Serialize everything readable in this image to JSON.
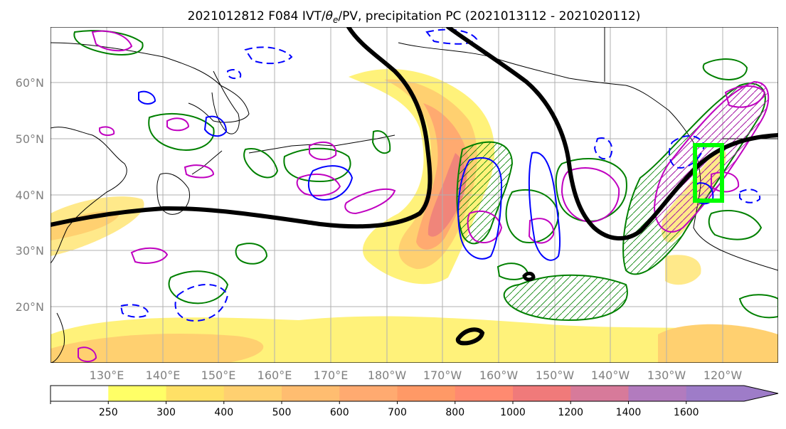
{
  "figure": {
    "title_prefix": "2021012812 F084 IVT/",
    "title_theta": "θ",
    "title_theta_sub": "e",
    "title_suffix": "/PV, precipitation PC (2021013112 - 2021020112)"
  },
  "chart_data": {
    "type": "map",
    "title": "2021012812 F084 IVT/θe/PV, precipitation PC (2021013112 - 2021020112)",
    "projection": "equirectangular",
    "lon_range_east": [
      120,
      247
    ],
    "lat_range": [
      10,
      70
    ],
    "grid": true,
    "lon_ticks": [
      "130°E",
      "140°E",
      "150°E",
      "160°E",
      "170°E",
      "180°W",
      "170°W",
      "160°W",
      "150°W",
      "140°W",
      "130°W",
      "120°W"
    ],
    "lat_ticks": [
      "20°N",
      "30°N",
      "40°N",
      "50°N",
      "60°N"
    ],
    "colorbar": {
      "levels": [
        250,
        300,
        400,
        500,
        600,
        700,
        800,
        1000,
        1200,
        1400,
        1600
      ],
      "colors": [
        "#ffffff",
        "#ffff66",
        "#ffe066",
        "#ffd070",
        "#ffbd70",
        "#ffaa70",
        "#ff9966",
        "#ff8a70",
        "#f07a7a",
        "#d77a9a",
        "#b27bbe",
        "#9e7cc8"
      ],
      "extend": "max"
    },
    "black_contour_color": "#000000",
    "precip_pc_contour_color": "#008000",
    "pv_contour_color": "#0000ff",
    "theta_contour_color": "#c000c0",
    "highlight_box_color": "#00ff00",
    "highlight_box": {
      "lon": [
        235,
        240.5
      ],
      "lat": [
        39,
        49
      ]
    }
  }
}
